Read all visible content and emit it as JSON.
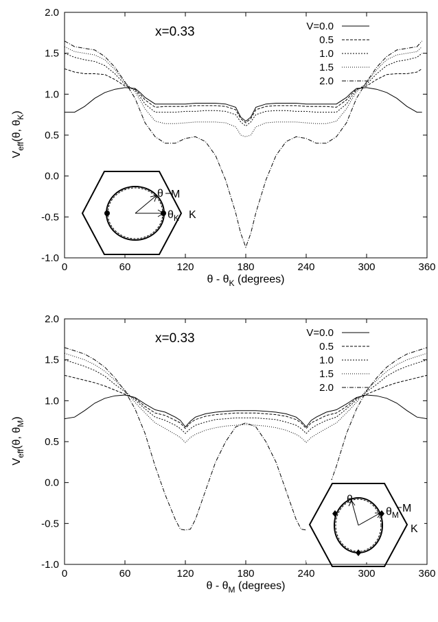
{
  "chart_data": [
    {
      "type": "line",
      "annotation": "x=0.33",
      "xlabel": "θ - θK (degrees)",
      "xlabel_base": "θ - θ",
      "xlabel_sub": "K",
      "xlabel_tail": " (degrees)",
      "ylabel_base": "V",
      "ylabel_sub": "eff",
      "ylabel_tail": "(θ, θ",
      "ylabel_sub2": "K",
      "ylabel_end": ")",
      "xlim": [
        0,
        360
      ],
      "ylim": [
        -1.0,
        2.0
      ],
      "xticks": [
        "0",
        "60",
        "120",
        "180",
        "240",
        "300",
        "360"
      ],
      "yticks": [
        "-1.0",
        "-0.5",
        "0.0",
        "0.5",
        "1.0",
        "1.5",
        "2.0"
      ],
      "grid": false,
      "legend_position": "top-right",
      "x": [
        0,
        10,
        20,
        30,
        40,
        50,
        60,
        70,
        75,
        80,
        90,
        100,
        110,
        120,
        130,
        140,
        150,
        160,
        170,
        175,
        180,
        185,
        190,
        200,
        210,
        220,
        230,
        240,
        250,
        260,
        270,
        280,
        285,
        290,
        300,
        310,
        320,
        330,
        340,
        350,
        355
      ],
      "series": [
        {
          "name": "V=0.0",
          "values": [
            0.78,
            0.78,
            0.85,
            0.95,
            1.02,
            1.06,
            1.08,
            1.07,
            1.02,
            0.96,
            0.88,
            0.88,
            0.88,
            0.88,
            0.89,
            0.89,
            0.89,
            0.88,
            0.84,
            0.72,
            0.67,
            0.72,
            0.84,
            0.88,
            0.89,
            0.89,
            0.89,
            0.88,
            0.88,
            0.88,
            0.88,
            0.96,
            1.02,
            1.07,
            1.08,
            1.06,
            1.02,
            0.95,
            0.85,
            0.78,
            0.78
          ]
        },
        {
          "name": "0.5",
          "values": [
            1.31,
            1.27,
            1.25,
            1.25,
            1.24,
            1.18,
            1.1,
            1.06,
            1.0,
            0.93,
            0.84,
            0.85,
            0.85,
            0.85,
            0.86,
            0.86,
            0.86,
            0.85,
            0.81,
            0.7,
            0.65,
            0.7,
            0.81,
            0.85,
            0.86,
            0.86,
            0.86,
            0.85,
            0.85,
            0.85,
            0.84,
            0.93,
            1.0,
            1.06,
            1.1,
            1.18,
            1.24,
            1.25,
            1.25,
            1.27,
            1.31
          ]
        },
        {
          "name": "1.0",
          "values": [
            1.5,
            1.45,
            1.42,
            1.4,
            1.35,
            1.25,
            1.12,
            1.05,
            0.97,
            0.88,
            0.78,
            0.78,
            0.78,
            0.79,
            0.79,
            0.8,
            0.8,
            0.79,
            0.75,
            0.66,
            0.61,
            0.66,
            0.75,
            0.79,
            0.8,
            0.8,
            0.79,
            0.79,
            0.78,
            0.78,
            0.78,
            0.88,
            0.97,
            1.05,
            1.12,
            1.25,
            1.35,
            1.4,
            1.42,
            1.45,
            1.5
          ]
        },
        {
          "name": "1.5",
          "values": [
            1.58,
            1.52,
            1.5,
            1.48,
            1.42,
            1.3,
            1.14,
            1.03,
            0.93,
            0.82,
            0.67,
            0.64,
            0.64,
            0.65,
            0.66,
            0.66,
            0.66,
            0.65,
            0.6,
            0.5,
            0.48,
            0.5,
            0.6,
            0.65,
            0.66,
            0.66,
            0.66,
            0.65,
            0.64,
            0.64,
            0.67,
            0.82,
            0.93,
            1.03,
            1.14,
            1.3,
            1.42,
            1.48,
            1.5,
            1.52,
            1.58
          ]
        },
        {
          "name": "2.0",
          "values": [
            1.65,
            1.58,
            1.56,
            1.54,
            1.46,
            1.33,
            1.15,
            0.95,
            0.8,
            0.65,
            0.48,
            0.4,
            0.4,
            0.46,
            0.48,
            0.42,
            0.25,
            -0.05,
            -0.45,
            -0.7,
            -0.87,
            -0.7,
            -0.45,
            -0.05,
            0.25,
            0.42,
            0.48,
            0.46,
            0.4,
            0.4,
            0.48,
            0.65,
            0.8,
            0.95,
            1.15,
            1.33,
            1.46,
            1.54,
            1.56,
            1.58,
            1.65
          ]
        }
      ],
      "inset": {
        "labels": [
          "θ",
          "M",
          "θK",
          "K"
        ],
        "t1": "θ",
        "t2": "M",
        "t3": "θ",
        "t3sub": "K",
        "t4": "K",
        "position": "bottom-left"
      }
    },
    {
      "type": "line",
      "annotation": "x=0.33",
      "xlabel": "θ - θM (degrees)",
      "xlabel_base": "θ - θ",
      "xlabel_sub": "M",
      "xlabel_tail": " (degrees)",
      "ylabel_base": "V",
      "ylabel_sub": "eff",
      "ylabel_tail": "(θ, θ",
      "ylabel_sub2": "M",
      "ylabel_end": ")",
      "xlim": [
        0,
        360
      ],
      "ylim": [
        -1.0,
        2.0
      ],
      "xticks": [
        "0",
        "60",
        "120",
        "180",
        "240",
        "300",
        "360"
      ],
      "yticks": [
        "-1.0",
        "-0.5",
        "0.0",
        "0.5",
        "1.0",
        "1.5",
        "2.0"
      ],
      "grid": false,
      "legend_position": "top-right",
      "x": [
        0,
        10,
        20,
        30,
        40,
        50,
        60,
        70,
        80,
        90,
        100,
        110,
        115,
        120,
        125,
        130,
        140,
        150,
        160,
        170,
        180,
        190,
        200,
        210,
        220,
        230,
        235,
        240,
        245,
        250,
        260,
        270,
        280,
        290,
        300,
        310,
        320,
        330,
        340,
        350,
        360
      ],
      "series": [
        {
          "name": "V=0.0",
          "values": [
            0.78,
            0.8,
            0.88,
            0.97,
            1.03,
            1.06,
            1.07,
            1.04,
            0.96,
            0.89,
            0.86,
            0.8,
            0.76,
            0.68,
            0.75,
            0.8,
            0.84,
            0.86,
            0.87,
            0.88,
            0.88,
            0.88,
            0.87,
            0.86,
            0.84,
            0.8,
            0.75,
            0.68,
            0.76,
            0.8,
            0.86,
            0.89,
            0.96,
            1.04,
            1.07,
            1.06,
            1.03,
            0.97,
            0.88,
            0.8,
            0.78
          ]
        },
        {
          "name": "0.5",
          "values": [
            1.31,
            1.28,
            1.25,
            1.22,
            1.18,
            1.13,
            1.08,
            1.03,
            0.93,
            0.85,
            0.82,
            0.76,
            0.73,
            0.66,
            0.73,
            0.77,
            0.81,
            0.83,
            0.84,
            0.85,
            0.85,
            0.85,
            0.84,
            0.83,
            0.81,
            0.77,
            0.73,
            0.66,
            0.73,
            0.76,
            0.82,
            0.85,
            0.93,
            1.03,
            1.08,
            1.13,
            1.18,
            1.22,
            1.25,
            1.28,
            1.31
          ]
        },
        {
          "name": "1.0",
          "values": [
            1.5,
            1.46,
            1.42,
            1.37,
            1.3,
            1.2,
            1.11,
            1.01,
            0.9,
            0.8,
            0.76,
            0.7,
            0.66,
            0.6,
            0.66,
            0.7,
            0.74,
            0.77,
            0.78,
            0.79,
            0.79,
            0.79,
            0.78,
            0.77,
            0.74,
            0.7,
            0.66,
            0.6,
            0.66,
            0.7,
            0.76,
            0.8,
            0.9,
            1.01,
            1.11,
            1.2,
            1.3,
            1.37,
            1.42,
            1.46,
            1.5
          ]
        },
        {
          "name": "1.5",
          "values": [
            1.58,
            1.54,
            1.5,
            1.44,
            1.36,
            1.25,
            1.13,
            0.98,
            0.85,
            0.73,
            0.66,
            0.59,
            0.55,
            0.49,
            0.55,
            0.59,
            0.64,
            0.67,
            0.69,
            0.7,
            0.71,
            0.7,
            0.69,
            0.67,
            0.64,
            0.59,
            0.55,
            0.49,
            0.55,
            0.59,
            0.66,
            0.73,
            0.85,
            0.98,
            1.13,
            1.25,
            1.36,
            1.44,
            1.5,
            1.54,
            1.58
          ]
        },
        {
          "name": "2.0",
          "values": [
            1.65,
            1.61,
            1.57,
            1.5,
            1.41,
            1.28,
            1.12,
            0.9,
            0.6,
            0.2,
            -0.15,
            -0.45,
            -0.57,
            -0.58,
            -0.57,
            -0.45,
            -0.1,
            0.25,
            0.5,
            0.68,
            0.73,
            0.68,
            0.5,
            0.25,
            -0.1,
            -0.45,
            -0.57,
            -0.58,
            -0.57,
            -0.45,
            -0.15,
            0.2,
            0.6,
            0.9,
            1.12,
            1.28,
            1.41,
            1.5,
            1.57,
            1.61,
            1.65
          ]
        }
      ],
      "inset": {
        "labels": [
          "θ",
          "θM",
          "M",
          "K"
        ],
        "t1": "θ",
        "t3": "θ",
        "t3sub": "M",
        "t2": "M",
        "t4": "K",
        "position": "bottom-right"
      }
    }
  ]
}
